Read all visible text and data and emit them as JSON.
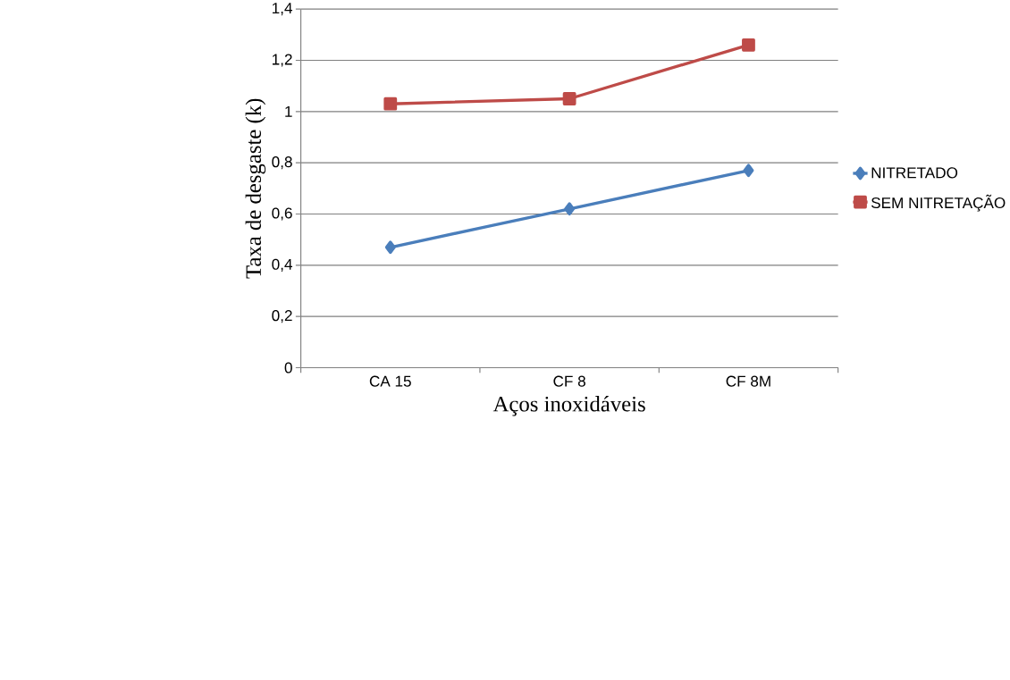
{
  "chart_data": {
    "type": "line",
    "xlabel": "Aços inoxidáveis",
    "ylabel": "Taxa de desgaste (k)",
    "categories": [
      "CA 15",
      "CF 8",
      "CF 8M"
    ],
    "series": [
      {
        "name": "NITRETADO",
        "color": "#4a7ebb",
        "marker": "diamond",
        "values": [
          0.47,
          0.62,
          0.77
        ]
      },
      {
        "name": "SEM NITRETAÇÃO",
        "color": "#be4b48",
        "marker": "square",
        "values": [
          1.03,
          1.05,
          1.26
        ]
      }
    ],
    "ylim": [
      0,
      1.4
    ],
    "yticks": [
      {
        "value": 0,
        "label": "0"
      },
      {
        "value": 0.2,
        "label": "0,2"
      },
      {
        "value": 0.4,
        "label": "0,4"
      },
      {
        "value": 0.6,
        "label": "0,6"
      },
      {
        "value": 0.8,
        "label": "0,8"
      },
      {
        "value": 1,
        "label": "1"
      },
      {
        "value": 1.2,
        "label": "1,2"
      },
      {
        "value": 1.4,
        "label": "1,4"
      }
    ],
    "grid": "y",
    "legend": "right",
    "line_style": "solid"
  }
}
